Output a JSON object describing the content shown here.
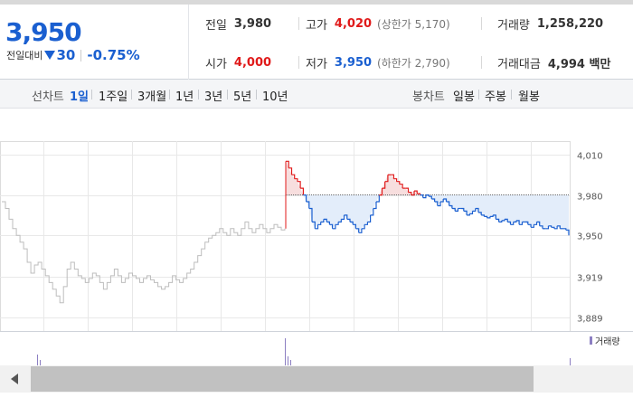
{
  "summary": {
    "price": "3,950",
    "diff_label": "전일대비",
    "diff_value": "30",
    "diff_percent": "-0.75%",
    "prev_close": {
      "label": "전일",
      "value": "3,980"
    },
    "open": {
      "label": "시가",
      "value": "4,000"
    },
    "high": {
      "label": "고가",
      "value": "4,020",
      "limit": "(상한가 5,170)"
    },
    "low": {
      "label": "저가",
      "value": "3,950",
      "limit": "(하한가 2,790)"
    },
    "volume": {
      "label": "거래량",
      "value": "1,258,220"
    },
    "amount": {
      "label": "거래대금",
      "value": "4,994 백만"
    }
  },
  "tabs": {
    "line_title": "선차트",
    "line_tabs": [
      "1일",
      "1주일",
      "3개월",
      "1년",
      "3년",
      "5년",
      "10년"
    ],
    "active": "1일",
    "candle_title": "봉차트",
    "candle_tabs": [
      "일봉",
      "주봉",
      "월봉"
    ]
  },
  "colors": {
    "up": "#e01a1a",
    "down": "#1a5fd0",
    "prev_session": "#bdbdbd",
    "fill": "#e3edfa",
    "grid": "#e8e8e8"
  },
  "chart_data": {
    "type": "line",
    "title": "",
    "ylabel": "",
    "xlabel": "",
    "y_ticks": [
      "4,010",
      "3,980",
      "3,950",
      "3,919",
      "3,889"
    ],
    "ylim": [
      3879,
      4020
    ],
    "reference_line": 3980,
    "volume_label": "거래량",
    "series": [
      {
        "values": [
          3975,
          3970,
          3962,
          3955,
          3950,
          3945,
          3940,
          3930,
          3922,
          3928,
          3930,
          3925,
          3920,
          3915,
          3910,
          3905,
          3900,
          3912,
          3925,
          3930,
          3925,
          3920,
          3918,
          3915,
          3918,
          3922,
          3920,
          3915,
          3910,
          3915,
          3920,
          3925,
          3920,
          3915,
          3918,
          3922,
          3920,
          3918,
          3915,
          3918,
          3920,
          3917,
          3915,
          3912,
          3910,
          3912,
          3915,
          3920,
          3917,
          3915,
          3918,
          3922,
          3925,
          3930,
          3935,
          3940,
          3945,
          3948,
          3950,
          3952,
          3955,
          3952,
          3950,
          3955,
          3952,
          3950,
          3955,
          3960,
          3955,
          3952,
          3955,
          3958,
          3955,
          3952,
          3955,
          3958,
          3956,
          3954,
          3955
        ]
      },
      {
        "values": [
          4005,
          4000,
          3995,
          3992,
          3990,
          3985,
          3980,
          3975,
          3970,
          3960,
          3955,
          3958,
          3960,
          3962,
          3960,
          3958,
          3955,
          3958,
          3960,
          3962,
          3965,
          3962,
          3960,
          3958,
          3955,
          3952,
          3955,
          3958,
          3960,
          3965,
          3970,
          3975,
          3980,
          3985,
          3990,
          3995,
          3995,
          3992,
          3990,
          3988,
          3985,
          3985,
          3982,
          3980,
          3983,
          3981,
          3980,
          3978,
          3980,
          3979,
          3977,
          3975,
          3972,
          3975,
          3977,
          3975,
          3972,
          3970,
          3968,
          3970,
          3970,
          3968,
          3965,
          3966,
          3968,
          3970,
          3967,
          3965,
          3964,
          3963,
          3964,
          3965,
          3962,
          3960,
          3961,
          3962,
          3960,
          3958,
          3960,
          3961,
          3958,
          3960,
          3960,
          3958,
          3956,
          3958,
          3960,
          3957,
          3955,
          3955,
          3957,
          3956,
          3955,
          3957,
          3955,
          3955,
          3954,
          3950
        ]
      }
    ]
  }
}
